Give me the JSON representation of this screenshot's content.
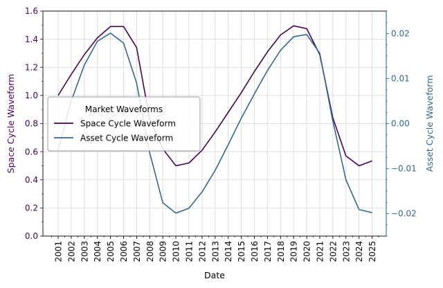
{
  "chart_data": {
    "type": "line",
    "title": "",
    "xlabel": "Date",
    "x": [
      "2001",
      "2002",
      "2003",
      "2004",
      "2005",
      "2006",
      "2007",
      "2008",
      "2009",
      "2010",
      "2011",
      "2012",
      "2013",
      "2014",
      "2015",
      "2016",
      "2017",
      "2018",
      "2019",
      "2020",
      "2021",
      "2022",
      "2023",
      "2024",
      "2025"
    ],
    "y_left": {
      "label": "Space Cycle Waveform",
      "range": [
        0,
        1.6
      ],
      "ticks": [
        "0.0",
        "0.2",
        "0.4",
        "0.6",
        "0.8",
        "1.0",
        "1.2",
        "1.4",
        "1.6"
      ],
      "color": "#440154"
    },
    "y_right": {
      "label": "Asset Cycle Waveform",
      "range": [
        -0.025,
        0.025
      ],
      "ticks": [
        "−0.02",
        "−0.01",
        "0.00",
        "0.01",
        "0.02"
      ],
      "color": "#31688e"
    },
    "series": [
      {
        "name": "Space Cycle Waveform",
        "axis": "left",
        "color": "#440154",
        "values": [
          1.0,
          1.15,
          1.29,
          1.41,
          1.49,
          1.49,
          1.34,
          0.83,
          0.62,
          0.5,
          0.52,
          0.61,
          0.74,
          0.88,
          1.02,
          1.17,
          1.31,
          1.43,
          1.495,
          1.475,
          1.29,
          0.84,
          0.57,
          0.5,
          0.535
        ]
      },
      {
        "name": "Asset Cycle Waveform",
        "axis": "right",
        "color": "#31688e",
        "values": [
          -0.006,
          0.005,
          0.013,
          0.0183,
          0.0201,
          0.0179,
          0.009,
          -0.0065,
          -0.0176,
          -0.0199,
          -0.0188,
          -0.0152,
          -0.0104,
          -0.0047,
          0.0012,
          0.0066,
          0.0118,
          0.0163,
          0.0193,
          0.0198,
          0.0156,
          0.0005,
          -0.0125,
          -0.0191,
          -0.0198
        ]
      }
    ],
    "grid": true,
    "legend": {
      "title": "Market Waveforms",
      "placement": "center-left",
      "entries": [
        "Space Cycle Waveform",
        "Asset Cycle Waveform"
      ]
    }
  }
}
